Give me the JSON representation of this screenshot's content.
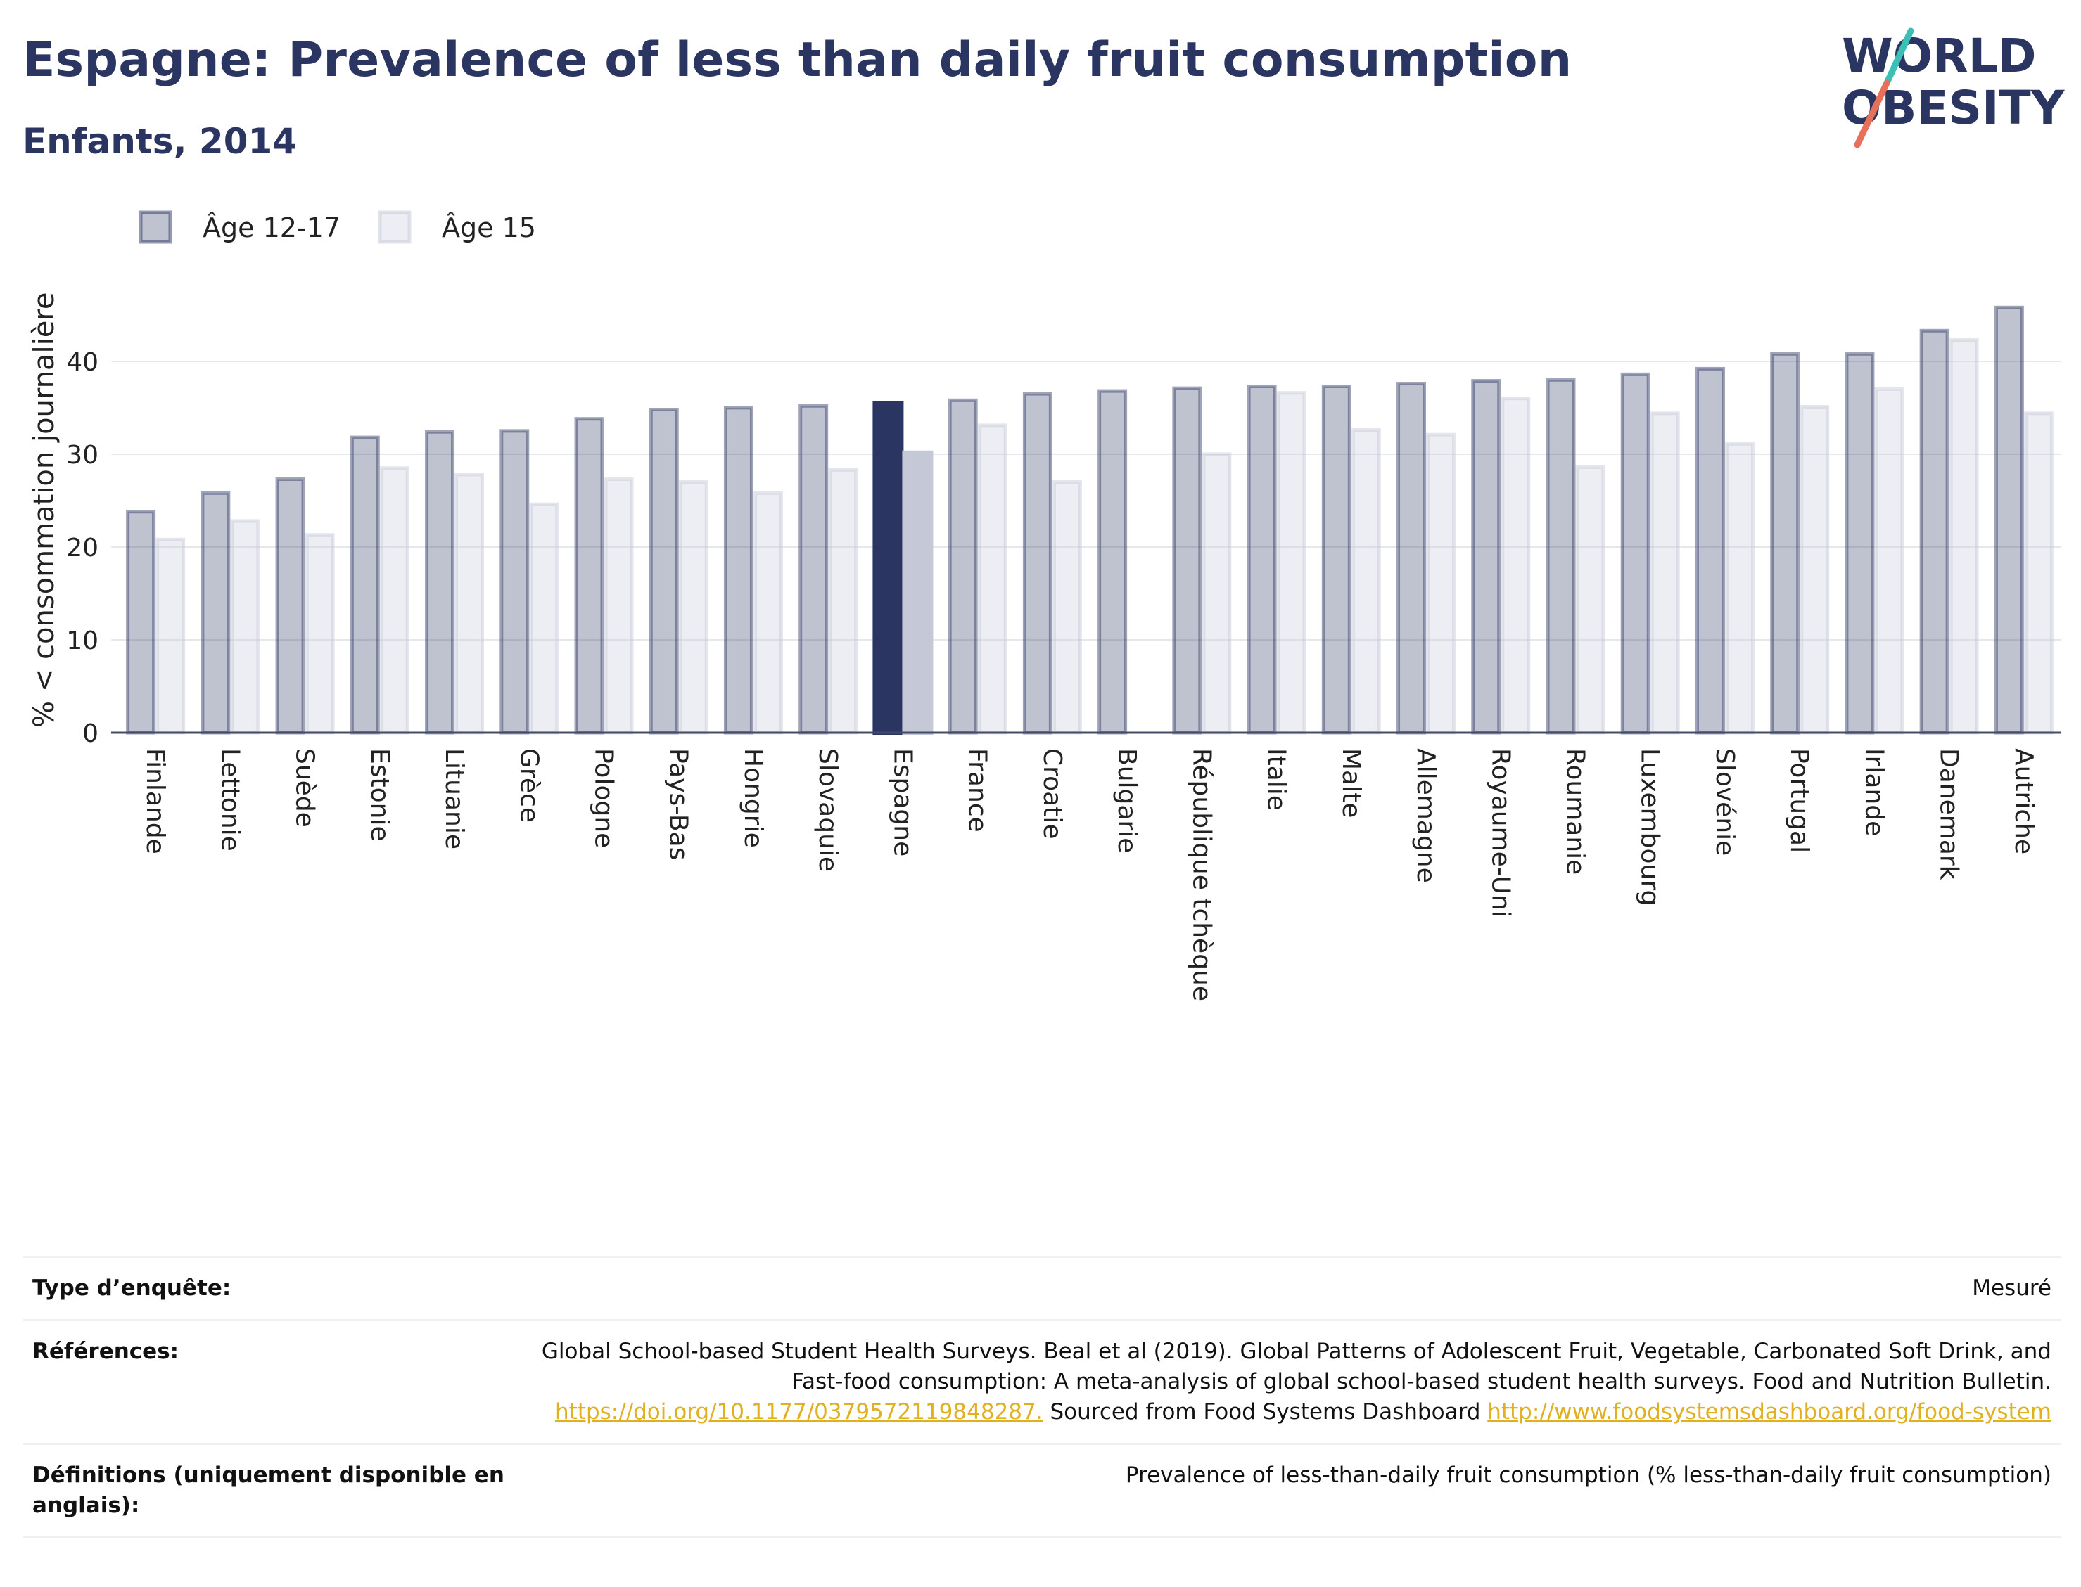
{
  "header": {
    "title": "Espagne: Prevalence of less than daily fruit consumption",
    "subtitle": "Enfants, 2014"
  },
  "logo": {
    "line1": "WORLD",
    "line2": "OBESITY",
    "colors": {
      "text": "#2b3561",
      "slash_teal": "#3cbfb4",
      "slash_red": "#e8705a"
    }
  },
  "chart_data": {
    "type": "bar",
    "ylabel": "% < consommation journalière",
    "ylim": [
      0,
      48
    ],
    "yticks": [
      0,
      10,
      20,
      30,
      40
    ],
    "grid": true,
    "legend_position": "top-left",
    "highlight_category": "Espagne",
    "colors": {
      "series1": "#2b3561",
      "series2": "#c5c8d6",
      "highlight1": "#2b3561",
      "highlight2": "#c5c8d6"
    },
    "categories": [
      "Finlande",
      "Lettonie",
      "Suède",
      "Estonie",
      "Lituanie",
      "Grèce",
      "Pologne",
      "Pays-Bas",
      "Hongrie",
      "Slovaquie",
      "Espagne",
      "France",
      "Croatie",
      "Bulgarie",
      "République tchèque",
      "Italie",
      "Malte",
      "Allemagne",
      "Royaume-Uni",
      "Roumanie",
      "Luxembourg",
      "Slovénie",
      "Portugal",
      "Irlande",
      "Danemark",
      "Autriche"
    ],
    "series": [
      {
        "name": "Âge 12-17",
        "values": [
          24,
          26,
          27.5,
          32,
          32.6,
          32.7,
          34,
          35,
          35.2,
          35.4,
          35.7,
          36,
          36.7,
          37,
          37.3,
          37.5,
          37.5,
          37.8,
          38.1,
          38.2,
          38.8,
          39.4,
          41,
          41,
          43.5,
          46
        ]
      },
      {
        "name": "Âge 15",
        "values": [
          21,
          23,
          21.5,
          28.7,
          28,
          24.8,
          27.5,
          27.2,
          26,
          28.5,
          30.4,
          33.3,
          27.2,
          null,
          30.2,
          36.8,
          32.8,
          32.3,
          36.2,
          28.8,
          34.6,
          31.3,
          35.3,
          37.2,
          42.5,
          34.6
        ]
      }
    ]
  },
  "info": {
    "survey_type_label": "Type d’enquête:",
    "survey_type_value": "Mesuré",
    "references_label": "Références:",
    "references_text": "Global School-based Student Health Surveys. Beal et al (2019). Global Patterns of Adolescent Fruit, Vegetable, Carbonated Soft Drink, and Fast-food consumption: A meta-analysis of global school-based student health surveys. Food and Nutrition Bulletin.",
    "references_link1": "https://doi.org/10.1177/0379572119848287.",
    "references_mid": " Sourced from Food Systems Dashboard ",
    "references_link2": "http://www.foodsystemsdashboard.org/food-system",
    "definitions_label": "Définitions (uniquement disponible en anglais):",
    "definitions_value": "Prevalence of less-than-daily fruit consumption (% less-than-daily fruit consumption)"
  }
}
